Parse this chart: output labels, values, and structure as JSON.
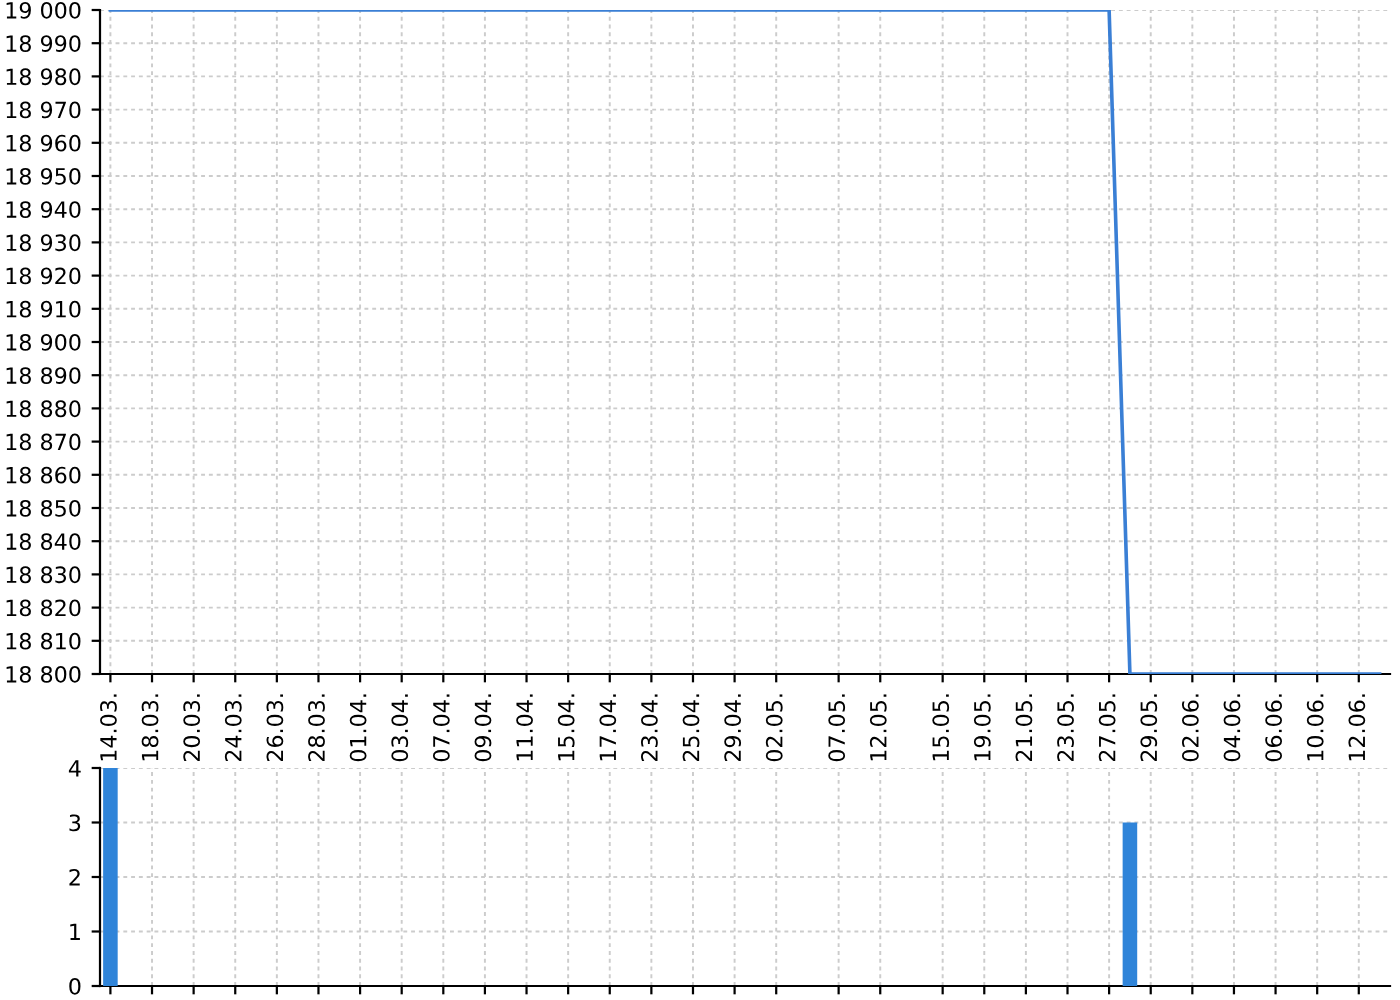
{
  "chart_data": [
    {
      "type": "line",
      "categories": [
        "14.03.",
        null,
        "18.03.",
        null,
        "20.03.",
        null,
        "24.03.",
        null,
        "26.03.",
        null,
        "28.03.",
        null,
        "01.04.",
        null,
        "03.04.",
        null,
        "07.04.",
        null,
        "09.04.",
        null,
        "11.04.",
        null,
        "15.04.",
        null,
        "17.04.",
        null,
        "23.04.",
        null,
        "25.04.",
        null,
        "29.04.",
        null,
        "02.05.",
        null,
        null,
        "07.05.",
        null,
        "12.05.",
        null,
        null,
        "15.05.",
        null,
        "19.05.",
        null,
        "21.05.",
        null,
        "23.05.",
        null,
        "27.05.",
        null,
        "29.05.",
        null,
        "02.06.",
        null,
        "04.06.",
        null,
        "06.06.",
        null,
        "10.06.",
        null,
        "12.06.",
        null
      ],
      "series": [
        {
          "color": "#3a7fd5",
          "values": [
            19000,
            19000,
            19000,
            19000,
            19000,
            19000,
            19000,
            19000,
            19000,
            19000,
            19000,
            19000,
            19000,
            19000,
            19000,
            19000,
            19000,
            19000,
            19000,
            19000,
            19000,
            19000,
            19000,
            19000,
            19000,
            19000,
            19000,
            19000,
            19000,
            19000,
            19000,
            19000,
            19000,
            19000,
            19000,
            19000,
            19000,
            19000,
            19000,
            19000,
            19000,
            19000,
            19000,
            19000,
            19000,
            19000,
            19000,
            19000,
            19000,
            18800,
            18800,
            18800,
            18800,
            18800,
            18800,
            18800,
            18800,
            18800,
            18800,
            18800,
            18800,
            18800
          ]
        }
      ],
      "ylim": [
        18800,
        19000
      ],
      "yticks": [
        {
          "value": 18800,
          "label": "18 800"
        },
        {
          "value": 18810,
          "label": "18 810"
        },
        {
          "value": 18820,
          "label": "18 820"
        },
        {
          "value": 18830,
          "label": "18 830"
        },
        {
          "value": 18840,
          "label": "18 840"
        },
        {
          "value": 18850,
          "label": "18 850"
        },
        {
          "value": 18860,
          "label": "18 860"
        },
        {
          "value": 18870,
          "label": "18 870"
        },
        {
          "value": 18880,
          "label": "18 880"
        },
        {
          "value": 18890,
          "label": "18 890"
        },
        {
          "value": 18900,
          "label": "18 900"
        },
        {
          "value": 18910,
          "label": "18 910"
        },
        {
          "value": 18920,
          "label": "18 920"
        },
        {
          "value": 18930,
          "label": "18 930"
        },
        {
          "value": 18940,
          "label": "18 940"
        },
        {
          "value": 18950,
          "label": "18 950"
        },
        {
          "value": 18960,
          "label": "18 960"
        },
        {
          "value": 18970,
          "label": "18 970"
        },
        {
          "value": 18980,
          "label": "18 980"
        },
        {
          "value": 18990,
          "label": "18 990"
        },
        {
          "value": 19000,
          "label": "19 000"
        }
      ],
      "grid": true
    },
    {
      "type": "bar",
      "categories": [
        "14.03.",
        null,
        "18.03.",
        null,
        "20.03.",
        null,
        "24.03.",
        null,
        "26.03.",
        null,
        "28.03.",
        null,
        "01.04.",
        null,
        "03.04.",
        null,
        "07.04.",
        null,
        "09.04.",
        null,
        "11.04.",
        null,
        "15.04.",
        null,
        "17.04.",
        null,
        "23.04.",
        null,
        "25.04.",
        null,
        "29.04.",
        null,
        "02.05.",
        null,
        null,
        "07.05.",
        null,
        "12.05.",
        null,
        null,
        "15.05.",
        null,
        "19.05.",
        null,
        "21.05.",
        null,
        "23.05.",
        null,
        "27.05.",
        null,
        "29.05.",
        null,
        "02.06.",
        null,
        "04.06.",
        null,
        "06.06.",
        null,
        "10.06.",
        null,
        "12.06.",
        null
      ],
      "series": [
        {
          "color": "#2f84d9",
          "values": [
            4,
            0,
            0,
            0,
            0,
            0,
            0,
            0,
            0,
            0,
            0,
            0,
            0,
            0,
            0,
            0,
            0,
            0,
            0,
            0,
            0,
            0,
            0,
            0,
            0,
            0,
            0,
            0,
            0,
            0,
            0,
            0,
            0,
            0,
            0,
            0,
            0,
            0,
            0,
            0,
            0,
            0,
            0,
            0,
            0,
            0,
            0,
            0,
            0,
            3,
            0,
            0,
            0,
            0,
            0,
            0,
            0,
            0,
            0,
            0,
            0,
            0
          ]
        }
      ],
      "ylim": [
        0,
        4
      ],
      "yticks": [
        0,
        1,
        2,
        3,
        4
      ],
      "grid": true,
      "tick_labels": "y"
    }
  ]
}
